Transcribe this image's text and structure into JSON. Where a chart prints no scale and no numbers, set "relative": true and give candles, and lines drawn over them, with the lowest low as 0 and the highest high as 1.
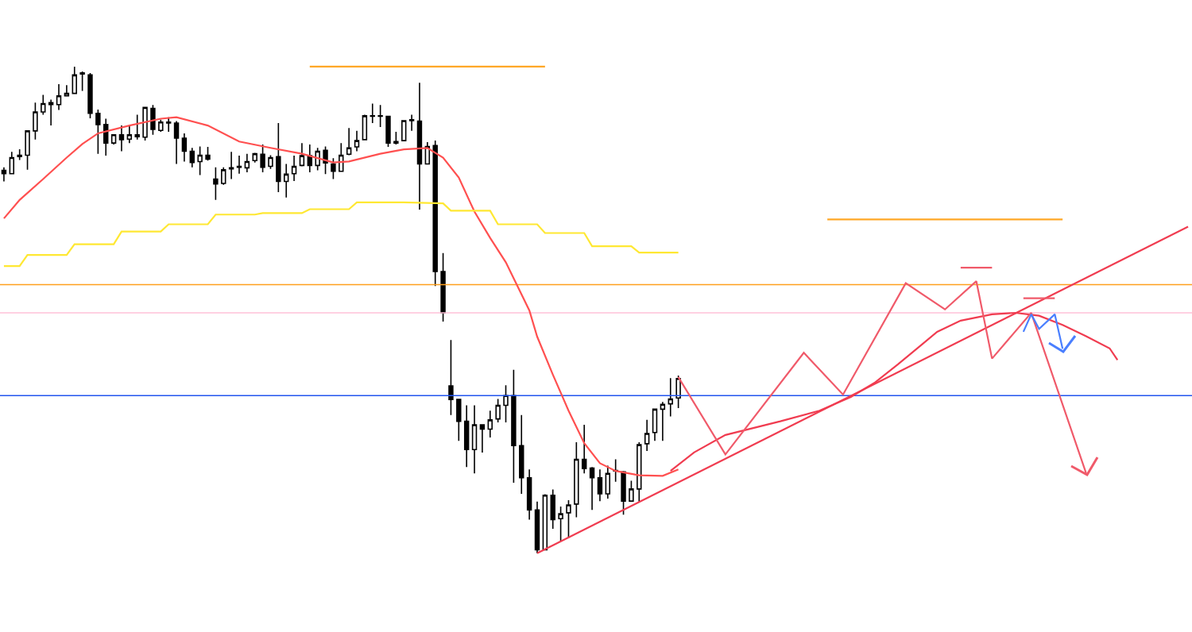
{
  "chart_data": {
    "type": "candlestick",
    "relative": true,
    "color": "#000000",
    "categories": [
      null,
      null,
      null,
      null,
      null,
      null,
      null,
      null,
      null,
      null,
      null,
      null,
      null,
      null,
      null,
      null,
      null,
      null,
      null,
      null,
      null,
      null,
      null,
      null,
      null,
      null,
      null,
      null,
      null,
      null,
      null,
      null,
      null,
      null,
      null,
      null,
      null,
      null,
      null,
      null,
      null,
      null,
      null,
      null,
      null,
      null,
      null,
      null,
      null,
      null,
      null,
      null,
      null,
      null,
      null,
      null,
      null,
      null,
      null,
      null,
      null,
      null,
      null,
      null,
      null,
      null,
      null,
      null,
      null,
      null,
      null,
      null,
      null,
      null,
      null,
      null,
      null,
      null,
      null,
      null,
      null,
      null,
      null,
      null,
      null,
      null,
      null,
      null,
      null,
      null,
      null,
      null,
      null,
      null,
      null,
      null,
      null,
      null,
      null,
      null,
      null,
      null,
      null,
      null,
      null,
      null,
      null,
      null,
      null,
      null,
      null,
      null,
      null,
      null,
      null,
      null,
      null,
      null,
      null,
      null,
      null,
      null,
      null,
      null,
      null,
      null,
      null,
      null,
      null,
      null,
      null,
      null,
      null,
      null,
      null,
      null,
      null,
      null,
      null,
      null,
      null,
      null,
      null,
      null,
      null,
      null,
      null,
      null,
      null,
      null,
      null,
      null
    ],
    "ohlc": [
      [
        0.787,
        0.793,
        0.764,
        0.78
      ],
      [
        0.78,
        0.825,
        0.78,
        0.813
      ],
      [
        0.815,
        0.83,
        0.808,
        0.818
      ],
      [
        0.818,
        0.868,
        0.788,
        0.868
      ],
      [
        0.868,
        0.926,
        0.85,
        0.907
      ],
      [
        0.907,
        0.942,
        0.901,
        0.924
      ],
      [
        0.922,
        0.932,
        0.879,
        0.926
      ],
      [
        0.922,
        0.964,
        0.911,
        0.94
      ],
      [
        0.94,
        0.962,
        0.94,
        0.945
      ],
      [
        0.945,
        1.0,
        0.945,
        0.983
      ],
      [
        0.987,
        0.99,
        0.95,
        0.985
      ],
      [
        0.983,
        0.987,
        0.894,
        0.904
      ],
      [
        0.904,
        0.912,
        0.821,
        0.881
      ],
      [
        0.881,
        0.893,
        0.817,
        0.843
      ],
      [
        0.843,
        0.86,
        0.84,
        0.86
      ],
      [
        0.86,
        0.879,
        0.826,
        0.85
      ],
      [
        0.851,
        0.879,
        0.843,
        0.86
      ],
      [
        0.86,
        0.901,
        0.85,
        0.856
      ],
      [
        0.855,
        0.916,
        0.848,
        0.916
      ],
      [
        0.914,
        0.921,
        0.86,
        0.871
      ],
      [
        0.869,
        0.891,
        0.866,
        0.886
      ],
      [
        0.884,
        0.896,
        0.866,
        0.886
      ],
      [
        0.884,
        0.888,
        0.8,
        0.853
      ],
      [
        0.853,
        0.863,
        0.805,
        0.826
      ],
      [
        0.826,
        0.833,
        0.793,
        0.803
      ],
      [
        0.805,
        0.836,
        0.777,
        0.818
      ],
      [
        0.818,
        0.835,
        0.807,
        0.81
      ],
      [
        0.769,
        0.793,
        0.726,
        0.759
      ],
      [
        0.76,
        0.793,
        0.757,
        0.788
      ],
      [
        0.79,
        0.825,
        0.769,
        0.792
      ],
      [
        0.793,
        0.817,
        0.78,
        0.795
      ],
      [
        0.792,
        0.821,
        0.783,
        0.805
      ],
      [
        0.807,
        0.823,
        0.803,
        0.821
      ],
      [
        0.82,
        0.84,
        0.783,
        0.793
      ],
      [
        0.795,
        0.818,
        0.79,
        0.813
      ],
      [
        0.815,
        0.884,
        0.742,
        0.764
      ],
      [
        0.764,
        0.8,
        0.731,
        0.779
      ],
      [
        0.78,
        0.817,
        0.765,
        0.795
      ],
      [
        0.797,
        0.843,
        0.795,
        0.817
      ],
      [
        0.817,
        0.84,
        0.783,
        0.797
      ],
      [
        0.797,
        0.833,
        0.787,
        0.826
      ],
      [
        0.828,
        0.836,
        0.779,
        0.802
      ],
      [
        0.8,
        0.812,
        0.769,
        0.785
      ],
      [
        0.785,
        0.843,
        0.785,
        0.818
      ],
      [
        0.82,
        0.874,
        0.818,
        0.833
      ],
      [
        0.835,
        0.868,
        0.826,
        0.848
      ],
      [
        0.85,
        0.901,
        0.85,
        0.899
      ],
      [
        0.898,
        0.924,
        0.884,
        0.899
      ],
      [
        0.899,
        0.921,
        0.876,
        0.898
      ],
      [
        0.898,
        0.898,
        0.835,
        0.843
      ],
      [
        0.846,
        0.866,
        0.84,
        0.843
      ],
      [
        0.848,
        0.889,
        0.848,
        0.889
      ],
      [
        0.889,
        0.901,
        0.868,
        0.891
      ],
      [
        0.888,
        0.967,
        0.706,
        0.8
      ],
      [
        0.8,
        0.845,
        0.8,
        0.836
      ],
      [
        0.838,
        0.848,
        0.549,
        0.579
      ],
      [
        0.579,
        0.617,
        0.476,
        0.494
      ],
      [
        0.344,
        0.438,
        0.284,
        0.316
      ],
      [
        0.316,
        0.316,
        0.231,
        0.271
      ],
      [
        0.271,
        0.304,
        0.177,
        0.213
      ],
      [
        0.213,
        0.304,
        0.164,
        0.264
      ],
      [
        0.264,
        0.264,
        0.207,
        0.255
      ],
      [
        0.255,
        0.293,
        0.238,
        0.274
      ],
      [
        0.276,
        0.317,
        0.269,
        0.304
      ],
      [
        0.304,
        0.345,
        0.269,
        0.324
      ],
      [
        0.324,
        0.377,
        0.145,
        0.221
      ],
      [
        0.221,
        0.284,
        0.122,
        0.155
      ],
      [
        0.155,
        0.172,
        0.069,
        0.089
      ],
      [
        0.089,
        0.106,
        0.0,
        0.007
      ],
      [
        0.007,
        0.121,
        0.007,
        0.119
      ],
      [
        0.119,
        0.131,
        0.05,
        0.069
      ],
      [
        0.071,
        0.096,
        0.025,
        0.081
      ],
      [
        0.083,
        0.109,
        0.031,
        0.099
      ],
      [
        0.101,
        0.228,
        0.074,
        0.193
      ],
      [
        0.193,
        0.264,
        0.164,
        0.174
      ],
      [
        0.175,
        0.177,
        0.089,
        0.155
      ],
      [
        0.155,
        0.172,
        0.107,
        0.122
      ],
      [
        0.122,
        0.18,
        0.112,
        0.164
      ],
      [
        0.169,
        0.193,
        0.147,
        0.17
      ],
      [
        0.167,
        0.169,
        0.079,
        0.107
      ],
      [
        0.107,
        0.149,
        0.106,
        0.132
      ],
      [
        0.132,
        0.228,
        0.106,
        0.223
      ],
      [
        0.225,
        0.274,
        0.21,
        0.246
      ],
      [
        0.248,
        0.296,
        0.231,
        0.296
      ],
      [
        0.296,
        0.311,
        0.231,
        0.306
      ],
      [
        0.307,
        0.36,
        0.281,
        0.317
      ],
      [
        0.319,
        0.365,
        0.298,
        0.359
      ],
      null,
      null,
      null,
      null,
      null,
      null,
      null,
      null,
      null,
      null,
      null,
      null,
      null,
      null,
      null,
      null,
      null,
      null,
      null,
      null,
      null,
      null,
      null,
      null,
      null,
      null,
      null,
      null,
      null,
      null,
      null,
      null,
      null,
      null,
      null,
      null,
      null,
      null,
      null,
      null,
      null,
      null,
      null,
      null,
      null,
      null,
      null,
      null,
      null,
      null,
      null,
      null,
      null,
      null,
      null,
      null,
      null,
      null,
      null,
      null,
      null,
      null,
      null,
      null,
      null
    ],
    "series": [
      {
        "type": "line",
        "color": "#ff5050",
        "values": [
          0.688,
          null,
          0.726,
          null,
          null,
          0.769,
          null,
          null,
          0.813,
          null,
          0.841,
          null,
          0.863,
          null,
          null,
          null,
          0.879,
          null,
          null,
          null,
          0.893,
          null,
          0.896,
          null,
          null,
          null,
          0.879,
          null,
          null,
          null,
          0.846,
          null,
          null,
          null,
          0.833,
          null,
          null,
          null,
          0.821,
          null,
          null,
          null,
          0.803,
          null,
          0.805,
          null,
          null,
          null,
          0.821,
          null,
          null,
          0.83,
          null,
          null,
          0.833,
          null,
          0.813,
          null,
          0.772,
          null,
          0.702,
          null,
          0.648,
          null,
          0.598,
          null,
          null,
          0.499,
          0.445,
          null,
          0.367,
          null,
          0.293,
          null,
          0.226,
          null,
          0.185,
          null,
          0.169,
          null,
          null,
          0.16,
          null,
          null,
          0.159,
          null,
          0.172,
          null,
          null,
          null,
          null,
          null,
          null,
          null,
          null,
          null,
          null,
          null,
          null,
          null,
          null,
          null,
          null,
          null,
          null,
          null,
          null,
          null,
          null,
          null,
          null,
          null,
          null,
          null,
          null,
          null,
          null,
          null,
          null,
          null,
          null,
          null,
          null,
          null,
          null,
          null,
          null,
          null,
          null,
          null,
          null,
          null,
          null,
          null,
          null,
          null,
          null,
          null,
          null,
          null,
          null,
          null,
          null,
          null,
          null,
          null,
          null,
          null,
          null,
          null,
          null,
          null
        ]
      },
      {
        "type": "line",
        "color": "#f03c50",
        "values": [
          null,
          null,
          null,
          null,
          null,
          null,
          null,
          null,
          null,
          null,
          null,
          null,
          null,
          null,
          null,
          null,
          null,
          null,
          null,
          null,
          null,
          null,
          null,
          null,
          null,
          null,
          null,
          null,
          null,
          null,
          null,
          null,
          null,
          null,
          null,
          null,
          null,
          null,
          null,
          null,
          null,
          null,
          null,
          null,
          null,
          null,
          null,
          null,
          null,
          null,
          null,
          null,
          null,
          null,
          null,
          null,
          null,
          null,
          null,
          null,
          null,
          null,
          null,
          null,
          null,
          null,
          null,
          null,
          null,
          null,
          null,
          null,
          null,
          null,
          null,
          null,
          null,
          null,
          null,
          null,
          null,
          null,
          null,
          null,
          null,
          0.169,
          null,
          null,
          0.207,
          null,
          null,
          null,
          0.243,
          null,
          null,
          null,
          null,
          null,
          null,
          0.271,
          null,
          null,
          null,
          null,
          0.293,
          null,
          null,
          null,
          0.321,
          null,
          null,
          0.35,
          null,
          null,
          0.388,
          null,
          null,
          0.428,
          null,
          0.455,
          null,
          null,
          0.478,
          null,
          null,
          null,
          0.491,
          null,
          null,
          0.494,
          null,
          null,
          0.488,
          null,
          null,
          0.469,
          null,
          null,
          0.446,
          null,
          null,
          0.421,
          0.397,
          null,
          null,
          null,
          null,
          null,
          null,
          null,
          null,
          null
        ]
      },
      {
        "type": "line",
        "color": "#ffe833",
        "values": [
          0.59,
          null,
          0.59,
          0.613,
          null,
          null,
          null,
          null,
          0.613,
          0.635,
          null,
          null,
          null,
          null,
          0.635,
          0.661,
          null,
          null,
          null,
          null,
          0.661,
          0.676,
          null,
          null,
          null,
          null,
          0.676,
          0.696,
          null,
          null,
          null,
          null,
          0.696,
          0.699,
          null,
          null,
          null,
          null,
          0.699,
          0.707,
          null,
          null,
          null,
          null,
          0.707,
          0.721,
          null,
          null,
          null,
          null,
          null,
          0.721,
          null,
          null,
          null,
          null,
          0.719,
          0.704,
          null,
          null,
          null,
          null,
          0.704,
          0.676,
          null,
          null,
          null,
          null,
          0.676,
          0.658,
          null,
          null,
          null,
          null,
          0.658,
          0.631,
          null,
          null,
          null,
          null,
          0.631,
          0.618,
          null,
          null,
          null,
          null,
          0.618,
          null,
          null,
          null,
          null,
          null,
          null,
          null,
          null,
          null,
          null,
          null,
          null,
          null,
          null,
          null,
          null,
          null,
          null,
          null,
          null,
          null,
          null,
          null,
          null,
          null,
          null,
          null,
          null,
          null,
          null,
          null,
          null,
          null,
          null,
          null,
          null,
          null,
          null,
          null,
          null,
          null,
          null,
          null,
          null,
          null,
          null,
          null,
          null,
          null,
          null,
          null,
          null,
          null,
          null,
          null,
          null,
          null,
          null,
          null,
          null,
          null,
          null,
          null,
          null,
          null
        ]
      },
      {
        "type": "line",
        "color": "#f03c50",
        "values": [
          null,
          null,
          null,
          null,
          null,
          null,
          null,
          null,
          null,
          null,
          null,
          null,
          null,
          null,
          null,
          null,
          null,
          null,
          null,
          null,
          null,
          null,
          null,
          null,
          null,
          null,
          null,
          null,
          null,
          null,
          null,
          null,
          null,
          null,
          null,
          null,
          null,
          null,
          null,
          null,
          null,
          null,
          null,
          null,
          null,
          null,
          null,
          null,
          null,
          null,
          null,
          null,
          null,
          null,
          null,
          null,
          null,
          null,
          null,
          null,
          null,
          null,
          null,
          null,
          null,
          null,
          null,
          null,
          0.0,
          null,
          null,
          null,
          null,
          null,
          null,
          null,
          null,
          null,
          null,
          null,
          null,
          null,
          null,
          null,
          null,
          null,
          null,
          null,
          null,
          null,
          null,
          null,
          null,
          null,
          null,
          null,
          null,
          null,
          null,
          null,
          null,
          null,
          null,
          null,
          null,
          null,
          null,
          null,
          null,
          null,
          null,
          null,
          null,
          null,
          null,
          null,
          null,
          null,
          null,
          null,
          null,
          null,
          null,
          null,
          null,
          null,
          null,
          null,
          null,
          null,
          null,
          null,
          null,
          null,
          null,
          null,
          null,
          null,
          null,
          null,
          null,
          null,
          null,
          null,
          null,
          null,
          null,
          null,
          null,
          null,
          null,
          0.671
        ]
      },
      {
        "type": "line",
        "color": "#ffa726",
        "values": [
          null,
          null,
          null,
          null,
          null,
          null,
          null,
          null,
          null,
          null,
          null,
          null,
          null,
          null,
          null,
          null,
          null,
          null,
          null,
          null,
          null,
          null,
          null,
          null,
          null,
          null,
          null,
          null,
          null,
          null,
          null,
          null,
          null,
          null,
          null,
          null,
          null,
          null,
          null,
          1.0,
          null,
          null,
          null,
          null,
          null,
          null,
          null,
          null,
          null,
          null,
          null,
          null,
          null,
          null,
          null,
          null,
          null,
          null,
          null,
          null,
          null,
          null,
          null,
          null,
          null,
          null,
          null,
          null,
          null,
          1.0,
          null,
          null,
          null,
          null,
          null,
          null,
          null,
          null,
          null,
          null,
          null,
          null,
          null,
          null,
          null,
          null,
          null,
          null,
          null,
          null,
          null,
          null,
          null,
          null,
          null,
          null,
          null,
          null,
          null,
          null,
          null,
          null,
          null,
          null,
          null,
          null,
          null,
          null,
          null,
          null,
          null,
          null,
          null,
          null,
          null,
          null,
          null,
          null,
          null,
          null,
          null,
          null,
          null,
          null,
          null,
          null,
          null,
          null,
          null,
          null,
          null,
          null,
          null,
          null,
          null,
          null,
          null,
          null,
          null,
          null,
          null,
          null,
          null,
          null,
          null,
          null,
          null,
          null,
          null,
          null,
          null,
          null
        ]
      },
      {
        "type": "line",
        "color": "#ffa726",
        "values": [
          null,
          null,
          null,
          null,
          null,
          null,
          null,
          null,
          null,
          null,
          null,
          null,
          null,
          null,
          null,
          null,
          null,
          null,
          null,
          null,
          null,
          null,
          null,
          null,
          null,
          null,
          null,
          null,
          null,
          null,
          null,
          null,
          null,
          null,
          null,
          null,
          null,
          null,
          null,
          null,
          null,
          null,
          null,
          null,
          null,
          null,
          null,
          null,
          null,
          null,
          null,
          null,
          null,
          null,
          null,
          null,
          null,
          null,
          null,
          null,
          null,
          null,
          null,
          null,
          null,
          null,
          null,
          null,
          null,
          null,
          null,
          null,
          null,
          null,
          null,
          null,
          null,
          null,
          null,
          null,
          null,
          null,
          null,
          null,
          null,
          null,
          null,
          null,
          null,
          null,
          null,
          null,
          null,
          null,
          null,
          null,
          null,
          null,
          null,
          null,
          null,
          null,
          null,
          null,
          null,
          0.686,
          null,
          null,
          null,
          null,
          null,
          null,
          null,
          null,
          null,
          null,
          null,
          null,
          null,
          null,
          null,
          null,
          null,
          null,
          null,
          null,
          null,
          null,
          null,
          null,
          null,
          null,
          null,
          null,
          null,
          0.686,
          null,
          null,
          null,
          null,
          null,
          null,
          null,
          null,
          null,
          null,
          null,
          null,
          null,
          null,
          null,
          null
        ]
      },
      {
        "type": "line",
        "color": "#f05a6a",
        "values": [
          null,
          null,
          null,
          null,
          null,
          null,
          null,
          null,
          null,
          null,
          null,
          null,
          null,
          null,
          null,
          null,
          null,
          null,
          null,
          null,
          null,
          null,
          null,
          null,
          null,
          null,
          null,
          null,
          null,
          null,
          null,
          null,
          null,
          null,
          null,
          null,
          null,
          null,
          null,
          null,
          null,
          null,
          null,
          null,
          null,
          null,
          null,
          null,
          null,
          null,
          null,
          null,
          null,
          null,
          null,
          null,
          null,
          null,
          null,
          null,
          null,
          null,
          null,
          null,
          null,
          null,
          null,
          null,
          null,
          null,
          null,
          null,
          null,
          null,
          null,
          null,
          null,
          null,
          null,
          null,
          null,
          null,
          null,
          null,
          null,
          null,
          null,
          null,
          null,
          null,
          null,
          null,
          null,
          null,
          null,
          null,
          null,
          null,
          null,
          null,
          null,
          null,
          null,
          null,
          null,
          null,
          null,
          null,
          null,
          null,
          null,
          null,
          null,
          null,
          null,
          null,
          null,
          null,
          null,
          null,
          null,
          null,
          0.587,
          null,
          null,
          null,
          0.587,
          null,
          null,
          null,
          null,
          null,
          null,
          null,
          null,
          null,
          null,
          null,
          null,
          null,
          null,
          null,
          null,
          null,
          null,
          null,
          null,
          null,
          null,
          null,
          null,
          null
        ]
      },
      {
        "type": "line",
        "color": "#f05a6a",
        "values": [
          null,
          null,
          null,
          null,
          null,
          null,
          null,
          null,
          null,
          null,
          null,
          null,
          null,
          null,
          null,
          null,
          null,
          null,
          null,
          null,
          null,
          null,
          null,
          null,
          null,
          null,
          null,
          null,
          null,
          null,
          null,
          null,
          null,
          null,
          null,
          null,
          null,
          null,
          null,
          null,
          null,
          null,
          null,
          null,
          null,
          null,
          null,
          null,
          null,
          null,
          null,
          null,
          null,
          null,
          null,
          null,
          null,
          null,
          null,
          null,
          null,
          null,
          null,
          null,
          null,
          null,
          null,
          null,
          null,
          null,
          null,
          null,
          null,
          null,
          null,
          null,
          null,
          null,
          null,
          null,
          null,
          null,
          null,
          null,
          null,
          null,
          null,
          null,
          null,
          null,
          null,
          null,
          null,
          null,
          null,
          null,
          null,
          null,
          null,
          null,
          null,
          null,
          null,
          null,
          null,
          null,
          null,
          null,
          null,
          null,
          null,
          null,
          null,
          null,
          null,
          null,
          null,
          null,
          null,
          null,
          null,
          null,
          null,
          null,
          null,
          null,
          null,
          null,
          null,
          null,
          0.524,
          null,
          null,
          null,
          0.524,
          null,
          null,
          null,
          null,
          null,
          null,
          null,
          null,
          null,
          null,
          null,
          null,
          null,
          null,
          null,
          null,
          null
        ]
      },
      {
        "type": "line",
        "color": "#f05a6a",
        "values": [
          null,
          null,
          null,
          null,
          null,
          null,
          null,
          null,
          null,
          null,
          null,
          null,
          null,
          null,
          null,
          null,
          null,
          null,
          null,
          null,
          null,
          null,
          null,
          null,
          null,
          null,
          null,
          null,
          null,
          null,
          null,
          null,
          null,
          null,
          null,
          null,
          null,
          null,
          null,
          null,
          null,
          null,
          null,
          null,
          null,
          null,
          null,
          null,
          null,
          null,
          null,
          null,
          null,
          null,
          null,
          null,
          null,
          null,
          null,
          null,
          null,
          null,
          null,
          null,
          null,
          null,
          null,
          null,
          null,
          null,
          null,
          null,
          null,
          null,
          null,
          null,
          null,
          null,
          null,
          null,
          null,
          null,
          null,
          null,
          null,
          null,
          0.362,
          null,
          null,
          null,
          null,
          null,
          0.203,
          null,
          null,
          null,
          null,
          null,
          null,
          null,
          null,
          null,
          0.412,
          null,
          null,
          null,
          null,
          0.326,
          null,
          null,
          null,
          null,
          null,
          null,
          null,
          0.555,
          null,
          null,
          null,
          null,
          0.501,
          null,
          null,
          null,
          0.559,
          null,
          0.4,
          null,
          null,
          null,
          null,
          0.494,
          null,
          null,
          null,
          null,
          null,
          null,
          0.164,
          null,
          null,
          null,
          null,
          null,
          null,
          null,
          null,
          null,
          null,
          null,
          null,
          null
        ]
      },
      {
        "type": "line",
        "color": "#4a7fff",
        "values": [
          null,
          null,
          null,
          null,
          null,
          null,
          null,
          null,
          null,
          null,
          null,
          null,
          null,
          null,
          null,
          null,
          null,
          null,
          null,
          null,
          null,
          null,
          null,
          null,
          null,
          null,
          null,
          null,
          null,
          null,
          null,
          null,
          null,
          null,
          null,
          null,
          null,
          null,
          null,
          null,
          null,
          null,
          null,
          null,
          null,
          null,
          null,
          null,
          null,
          null,
          null,
          null,
          null,
          null,
          null,
          null,
          null,
          null,
          null,
          null,
          null,
          null,
          null,
          null,
          null,
          null,
          null,
          null,
          null,
          null,
          null,
          null,
          null,
          null,
          null,
          null,
          null,
          null,
          null,
          null,
          null,
          null,
          null,
          null,
          null,
          null,
          null,
          null,
          null,
          null,
          null,
          null,
          null,
          null,
          null,
          null,
          null,
          null,
          null,
          null,
          null,
          null,
          null,
          null,
          null,
          null,
          null,
          null,
          null,
          null,
          null,
          null,
          null,
          null,
          null,
          null,
          null,
          null,
          null,
          null,
          null,
          null,
          null,
          null,
          null,
          null,
          null,
          null,
          null,
          null,
          0.455,
          0.491,
          0.461,
          null,
          0.491,
          0.42,
          null,
          null,
          null,
          null,
          null,
          null,
          null,
          null,
          null,
          null,
          null,
          null,
          null,
          null,
          null,
          null
        ]
      }
    ],
    "ref_lines": [
      {
        "axis": "y",
        "value": 0.552,
        "color": "#ff9f1c"
      },
      {
        "axis": "y",
        "value": 0.494,
        "color": "#ffc0d8"
      },
      {
        "axis": "y",
        "value": 0.324,
        "color": "#2255ee"
      }
    ]
  }
}
